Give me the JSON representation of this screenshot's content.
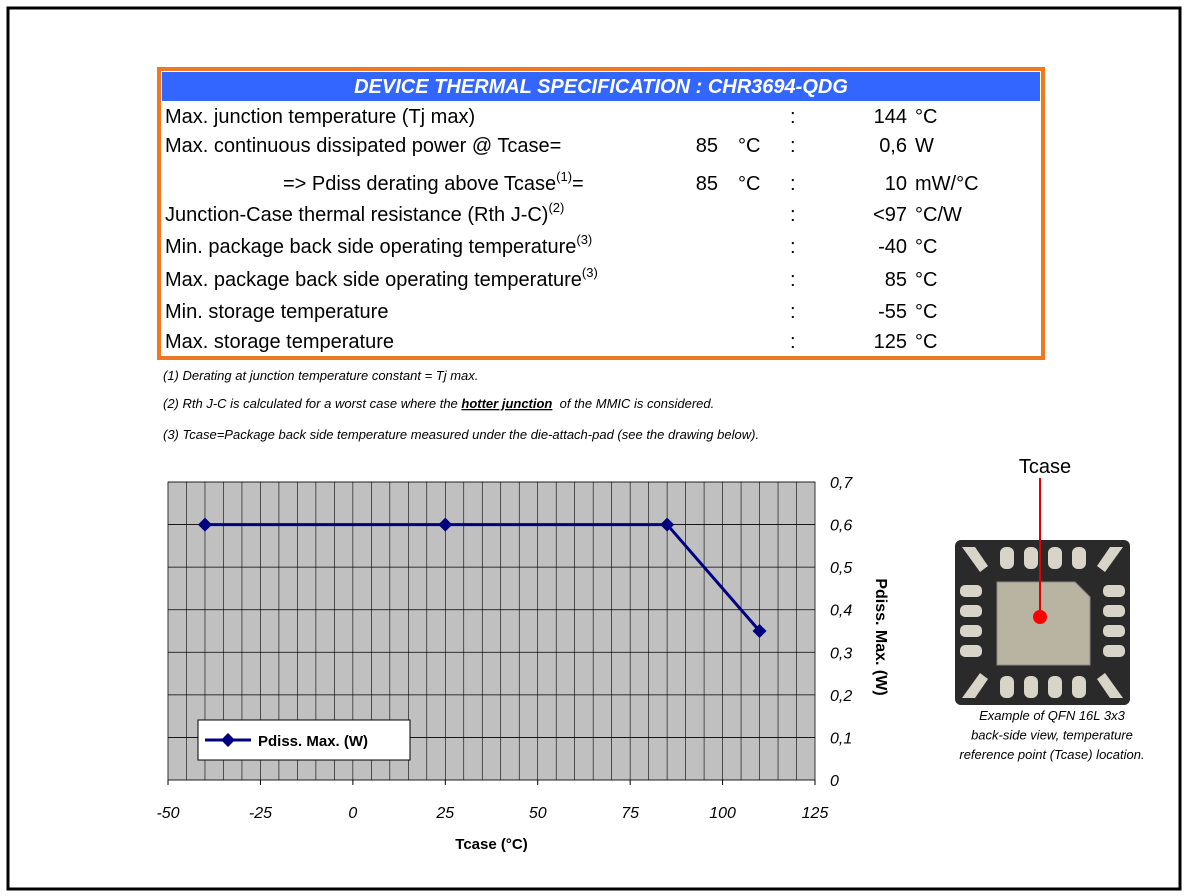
{
  "table": {
    "title": "DEVICE THERMAL SPECIFICATION : CHR3694-QDG",
    "rows": [
      {
        "label": "Max. junction temperature (Tj max)",
        "colon": ":",
        "value": "144",
        "unit": "°C"
      },
      {
        "label": "Max. continuous dissipated power @ Tcase=",
        "tcase": "85",
        "tcase_unit": "°C",
        "colon": ":",
        "value": "0,6",
        "unit": "W"
      },
      {
        "label": "=> Pdiss derating above Tcase",
        "note": "(1)",
        "label_end": "=",
        "tcase": "85",
        "tcase_unit": "°C",
        "colon": ":",
        "value": "10",
        "unit": "mW/°C"
      },
      {
        "label": "Junction-Case thermal resistance (Rth J-C)",
        "note": "(2)",
        "colon": ":",
        "value": "<97",
        "unit": "°C/W"
      },
      {
        "label": "Min. package back side operating temperature",
        "note": "(3)",
        "colon": ":",
        "value": "-40",
        "unit": "°C"
      },
      {
        "label": "Max. package back side operating temperature",
        "note": "(3)",
        "colon": ":",
        "value": "85",
        "unit": "°C"
      },
      {
        "label": "Min. storage temperature",
        "colon": ":",
        "value": "-55",
        "unit": "°C"
      },
      {
        "label": "Max. storage temperature",
        "colon": ":",
        "value": "125",
        "unit": "°C"
      }
    ]
  },
  "footnotes": [
    {
      "text": "(1) Derating at junction temperature constant = Tj max."
    },
    {
      "text": "(2) Rth J-C is calculated for a worst case where the ",
      "emphasis": "hotter junction",
      "text_end": "  of the MMIC is considered."
    },
    {
      "text": "(3) Tcase=Package back side temperature measured under the die-attach-pad (see the drawing below)."
    }
  ],
  "chart_data": {
    "type": "line",
    "x_label": "Tcase (°C)",
    "y_label": "Pdiss. Max. (W)",
    "x": [
      -40,
      25,
      85,
      110
    ],
    "series": [
      {
        "name": "Pdiss. Max. (W)",
        "color": "#000080",
        "values": [
          0.6,
          0.6,
          0.6,
          0.35
        ]
      }
    ],
    "xlim": [
      -50,
      125
    ],
    "xticks": [
      -50,
      -25,
      0,
      25,
      50,
      75,
      100,
      125
    ],
    "x_minor_grid": [
      -50,
      -45,
      -40,
      -35,
      -30,
      -25,
      -20,
      -15,
      -10,
      -5,
      0,
      5,
      10,
      15,
      20,
      25,
      30,
      35,
      40,
      45,
      50,
      55,
      60,
      65,
      70,
      75,
      80,
      85,
      90,
      95,
      100,
      105,
      110,
      115,
      120,
      125
    ],
    "ylim": [
      0,
      0.7
    ],
    "yticks": [
      0,
      {
        "value": 0.1,
        "label": "0,1"
      },
      {
        "value": 0.2,
        "label": "0,2"
      },
      {
        "value": 0.3,
        "label": "0,3"
      },
      {
        "value": 0.4,
        "label": "0,4"
      },
      {
        "value": 0.5,
        "label": "0,5"
      },
      {
        "value": 0.6,
        "label": "0,6"
      },
      {
        "value": 0.7,
        "label": "0,7"
      }
    ],
    "y_axis_side": "right",
    "grid": true,
    "legend": "lower-left"
  },
  "package_figure": {
    "label": "Tcase",
    "caption": [
      "Example of QFN 16L 3x3",
      "back-side view, temperature",
      "reference point (Tcase) location."
    ]
  }
}
